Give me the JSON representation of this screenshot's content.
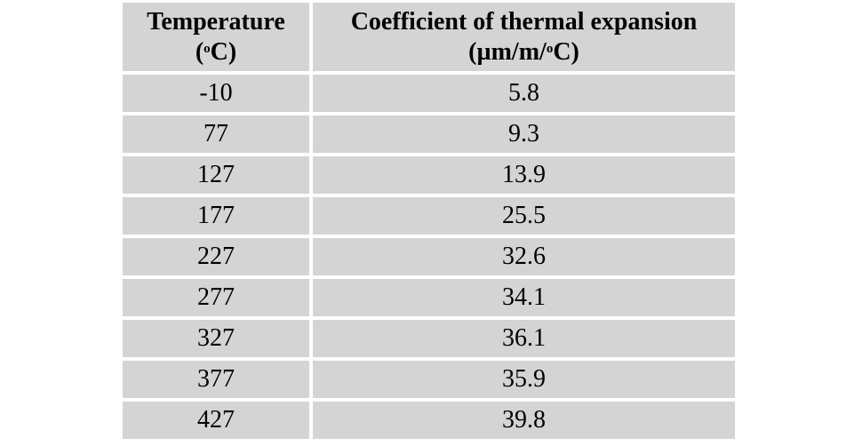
{
  "table": {
    "headers": [
      {
        "line1": "Temperature",
        "line2_pre": "(",
        "line2_sup": "o",
        "line2_post": "C)"
      },
      {
        "line1": "Coefficient of thermal expansion",
        "line2_pre": "(µm/m/",
        "line2_sup": "o",
        "line2_post": "C)"
      }
    ],
    "rows": [
      [
        "-10",
        "5.8"
      ],
      [
        "77",
        "9.3"
      ],
      [
        "127",
        "13.9"
      ],
      [
        "177",
        "25.5"
      ],
      [
        "227",
        "32.6"
      ],
      [
        "277",
        "34.1"
      ],
      [
        "327",
        "36.1"
      ],
      [
        "377",
        "35.9"
      ],
      [
        "427",
        "39.8"
      ]
    ]
  },
  "colors": {
    "cell_background": "#d4d4d4",
    "page_background": "#ffffff",
    "text": "#000000"
  }
}
